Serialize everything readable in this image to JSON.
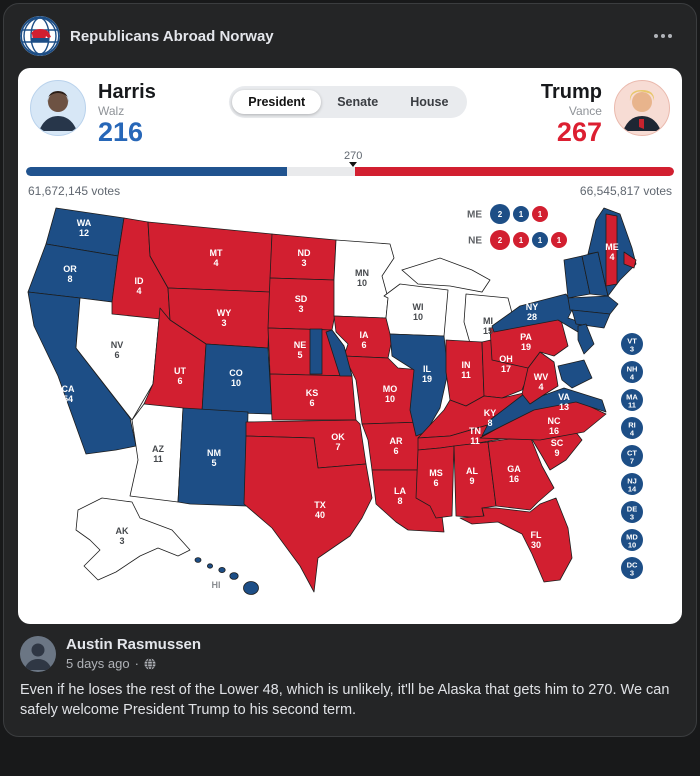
{
  "post": {
    "page_name": "Republicans Abroad Norway"
  },
  "widget": {
    "tabs": [
      {
        "label": "President",
        "active": true
      },
      {
        "label": "Senate",
        "active": false
      },
      {
        "label": "House",
        "active": false
      }
    ],
    "left_candidate": {
      "name": "Harris",
      "running_mate": "Walz",
      "electoral_votes": "216",
      "popular_votes": "61,672,145 votes"
    },
    "right_candidate": {
      "name": "Trump",
      "running_mate": "Vance",
      "electoral_votes": "267",
      "popular_votes": "66,545,817 votes"
    },
    "threshold": {
      "label": "270",
      "position_pct": 50.5
    },
    "bar": {
      "left_pct": 40.3,
      "right_pct": 49.2,
      "blue": "#20538f",
      "red": "#d21f30",
      "track": "#e9eaec"
    },
    "accents": {
      "harris": "#2767b8",
      "trump": "#dc1f31"
    }
  },
  "map": {
    "colors": {
      "harris": "#1d4e86",
      "trump": "#d21f30",
      "undecided": "#ffffff",
      "undecided_label": "#46494d",
      "hi_label": "#8a8d91"
    },
    "states": [
      {
        "id": "WA",
        "votes": "12",
        "winner": "harris"
      },
      {
        "id": "OR",
        "votes": "8",
        "winner": "harris"
      },
      {
        "id": "CA",
        "votes": "54",
        "winner": "harris"
      },
      {
        "id": "NV",
        "votes": "6",
        "winner": "undecided"
      },
      {
        "id": "ID",
        "votes": "4",
        "winner": "trump"
      },
      {
        "id": "MT",
        "votes": "4",
        "winner": "trump"
      },
      {
        "id": "WY",
        "votes": "3",
        "winner": "trump"
      },
      {
        "id": "UT",
        "votes": "6",
        "winner": "trump"
      },
      {
        "id": "CO",
        "votes": "10",
        "winner": "harris"
      },
      {
        "id": "AZ",
        "votes": "11",
        "winner": "undecided"
      },
      {
        "id": "NM",
        "votes": "5",
        "winner": "harris"
      },
      {
        "id": "ND",
        "votes": "3",
        "winner": "trump"
      },
      {
        "id": "SD",
        "votes": "3",
        "winner": "trump"
      },
      {
        "id": "NE",
        "votes": "5",
        "winner": "trump"
      },
      {
        "id": "KS",
        "votes": "6",
        "winner": "trump"
      },
      {
        "id": "OK",
        "votes": "7",
        "winner": "trump"
      },
      {
        "id": "TX",
        "votes": "40",
        "winner": "trump"
      },
      {
        "id": "MN",
        "votes": "10",
        "winner": "undecided"
      },
      {
        "id": "IA",
        "votes": "6",
        "winner": "trump"
      },
      {
        "id": "MO",
        "votes": "10",
        "winner": "trump"
      },
      {
        "id": "AR",
        "votes": "6",
        "winner": "trump"
      },
      {
        "id": "LA",
        "votes": "8",
        "winner": "trump"
      },
      {
        "id": "WI",
        "votes": "10",
        "winner": "undecided"
      },
      {
        "id": "IL",
        "votes": "19",
        "winner": "harris"
      },
      {
        "id": "MI",
        "votes": "15",
        "winner": "undecided"
      },
      {
        "id": "IN",
        "votes": "11",
        "winner": "trump"
      },
      {
        "id": "OH",
        "votes": "17",
        "winner": "trump"
      },
      {
        "id": "KY",
        "votes": "8",
        "winner": "trump"
      },
      {
        "id": "TN",
        "votes": "11",
        "winner": "trump"
      },
      {
        "id": "MS",
        "votes": "6",
        "winner": "trump"
      },
      {
        "id": "AL",
        "votes": "9",
        "winner": "trump"
      },
      {
        "id": "GA",
        "votes": "16",
        "winner": "trump"
      },
      {
        "id": "FL",
        "votes": "30",
        "winner": "trump"
      },
      {
        "id": "SC",
        "votes": "9",
        "winner": "trump"
      },
      {
        "id": "NC",
        "votes": "16",
        "winner": "trump"
      },
      {
        "id": "VA",
        "votes": "13",
        "winner": "harris"
      },
      {
        "id": "WV",
        "votes": "4",
        "winner": "trump"
      },
      {
        "id": "PA",
        "votes": "19",
        "winner": "trump"
      },
      {
        "id": "NY",
        "votes": "28",
        "winner": "harris"
      },
      {
        "id": "ME",
        "votes": "4",
        "winner": "harris"
      },
      {
        "id": "AK",
        "votes": "3",
        "winner": "undecided"
      },
      {
        "id": "HI",
        "votes": null,
        "winner": "harris"
      }
    ],
    "split_rows": [
      {
        "label": "ME",
        "districts": [
          {
            "value": "2",
            "winner": "harris"
          },
          {
            "value": "1",
            "winner": "harris"
          },
          {
            "value": "1",
            "winner": "trump"
          }
        ]
      },
      {
        "label": "NE",
        "districts": [
          {
            "value": "2",
            "winner": "trump"
          },
          {
            "value": "1",
            "winner": "trump"
          },
          {
            "value": "1",
            "winner": "harris"
          },
          {
            "value": "1",
            "winner": "trump"
          }
        ]
      }
    ],
    "east_circles": [
      {
        "id": "VT",
        "votes": "3",
        "winner": "harris"
      },
      {
        "id": "NH",
        "votes": "4",
        "winner": "harris"
      },
      {
        "id": "MA",
        "votes": "11",
        "winner": "harris"
      },
      {
        "id": "RI",
        "votes": "4",
        "winner": "harris"
      },
      {
        "id": "CT",
        "votes": "7",
        "winner": "harris"
      },
      {
        "id": "NJ",
        "votes": "14",
        "winner": "harris"
      },
      {
        "id": "DE",
        "votes": "3",
        "winner": "harris"
      },
      {
        "id": "MD",
        "votes": "10",
        "winner": "harris"
      },
      {
        "id": "DC",
        "votes": "3",
        "winner": "harris"
      }
    ]
  },
  "comment": {
    "author": "Austin Rasmussen",
    "timestamp": "5 days ago",
    "separator": "·",
    "text": "Even if he loses the rest of the Lower 48, which is unlikely, it'll be Alaska that gets him to 270. We can safely welcome President Trump to his second term."
  }
}
